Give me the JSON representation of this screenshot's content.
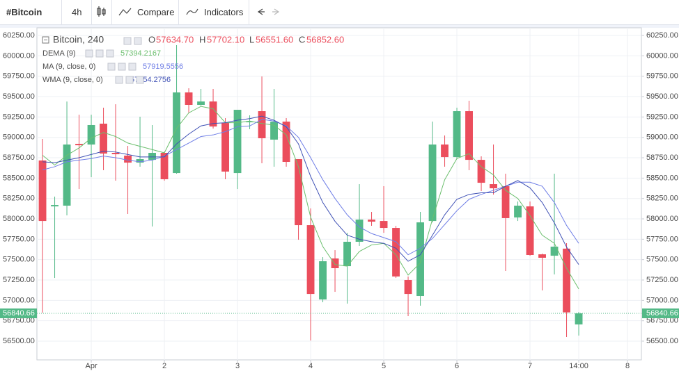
{
  "toolbar": {
    "symbol": "#Bitcoin",
    "interval": "4h",
    "compare": "Compare",
    "indicators": "Indicators"
  },
  "chart_data": {
    "type": "candlestick",
    "title": "Bitcoin, 240",
    "ohlc_legend": {
      "labels": [
        "O",
        "H",
        "L",
        "C"
      ],
      "value_labels": [
        "57634.70",
        "57702.10",
        "56551.60",
        "56852.60"
      ]
    },
    "x": [
      0,
      1,
      2,
      3,
      4,
      5,
      6,
      7,
      8,
      9,
      10,
      11,
      12,
      13,
      14,
      15,
      16,
      17,
      18,
      19,
      20,
      21,
      22,
      23,
      24,
      25,
      26,
      27,
      28,
      29,
      30,
      31,
      32,
      33,
      34,
      35,
      36,
      37,
      38,
      39,
      40,
      41,
      42,
      43,
      44
    ],
    "open": [
      58716,
      58153,
      58162,
      58920,
      58912,
      59168,
      58810,
      58776,
      58690,
      58724,
      58810,
      58562,
      59551,
      59398,
      59440,
      59176,
      58562,
      59185,
      59321,
      58972,
      59193,
      58733,
      57923,
      57011,
      57514,
      57420,
      57719,
      57991,
      57974,
      57889,
      57250,
      57054,
      57974,
      58912,
      58758,
      59321,
      58724,
      58426,
      58401,
      58017,
      58153,
      57565,
      57548,
      57634.7,
      56705
    ],
    "high": [
      58980,
      58273,
      59440,
      59278,
      59278,
      59364,
      59406,
      58895,
      59253,
      59151,
      58827,
      60131,
      59602,
      59594,
      59594,
      59236,
      59338,
      59270,
      59747,
      59594,
      59236,
      58733,
      58128,
      57531,
      57616,
      57829,
      58426,
      58085,
      58401,
      57915,
      57293,
      58085,
      59193,
      59023,
      59364,
      59449,
      58767,
      58912,
      58554,
      58213,
      58213,
      57574,
      58554,
      57702.1,
      56858
    ],
    "low": [
      56849,
      57275,
      58043,
      58366,
      58511,
      58597,
      58469,
      58060,
      58640,
      57906,
      58469,
      58554,
      59304,
      59389,
      59108,
      58486,
      58366,
      59100,
      58682,
      58640,
      58640,
      57744,
      56508,
      56977,
      57105,
      56960,
      57668,
      57915,
      57829,
      57275,
      56807,
      56935,
      57957,
      58640,
      58741,
      58597,
      58341,
      58298,
      57361,
      57974,
      57548,
      57122,
      57318,
      56551.6,
      56568
    ],
    "close": [
      57974,
      58170,
      58912,
      58903,
      59151,
      58801,
      58793,
      58690,
      58733,
      58810,
      58486,
      59551,
      59398,
      59440,
      59133,
      58580,
      59338,
      59193,
      58989,
      59193,
      58699,
      57923,
      57079,
      57480,
      57395,
      57719,
      57991,
      57966,
      57889,
      57293,
      57079,
      57957,
      58912,
      58758,
      59321,
      58724,
      58443,
      58375,
      58009,
      58162,
      57557,
      57523,
      57659,
      56852.6,
      56840.66
    ],
    "up_color": "#53b987",
    "down_color": "#eb4d5c",
    "indicators": [
      {
        "name": "DEMA (9)",
        "color": "#6cbf6e",
        "values": [
          58780,
          58660,
          58780,
          58870,
          58990,
          59060,
          59010,
          58930,
          58890,
          58850,
          58810,
          59110,
          59300,
          59380,
          59350,
          59180,
          59180,
          59200,
          59170,
          59150,
          59030,
          58640,
          58020,
          57660,
          57440,
          57420,
          57600,
          57680,
          57700,
          57560,
          57310,
          57460,
          58000,
          58480,
          58740,
          58800,
          58640,
          58540,
          58350,
          58250,
          58040,
          57800,
          57700,
          57394.2167,
          57140
        ]
      },
      {
        "name": "MA (9, close, 0)",
        "color": "#6f7ee6",
        "values": [
          58600,
          58640,
          58700,
          58720,
          58740,
          58770,
          58750,
          58720,
          58700,
          58720,
          58770,
          58850,
          58930,
          59010,
          59030,
          59070,
          59130,
          59140,
          59220,
          59200,
          59140,
          59000,
          58750,
          58480,
          58250,
          58050,
          57900,
          57820,
          57770,
          57720,
          57560,
          57640,
          57760,
          57930,
          58100,
          58240,
          58300,
          58350,
          58400,
          58450,
          58450,
          58400,
          58200,
          57919.5556,
          57700
        ]
      },
      {
        "name": "WMA (9, close, 0)",
        "color": "#3f51b5",
        "values": [
          58700,
          58690,
          58720,
          58750,
          58790,
          58830,
          58820,
          58790,
          58760,
          58760,
          58760,
          58920,
          59040,
          59140,
          59170,
          59180,
          59210,
          59230,
          59260,
          59210,
          59130,
          58920,
          58520,
          58200,
          57970,
          57800,
          57750,
          57720,
          57700,
          57640,
          57480,
          57560,
          57800,
          58050,
          58240,
          58300,
          58320,
          58320,
          58400,
          58470,
          58380,
          58200,
          57950,
          57654.2756,
          57440
        ]
      }
    ],
    "last_price": 56840.66,
    "xlim": [
      -0.46,
      49.14
    ],
    "ylim": [
      56270,
      60344
    ],
    "xticks": [
      {
        "value": 4,
        "label": "Apr"
      },
      {
        "value": 10,
        "label": "2"
      },
      {
        "value": 16,
        "label": "3"
      },
      {
        "value": 22,
        "label": "4"
      },
      {
        "value": 28,
        "label": "5"
      },
      {
        "value": 34,
        "label": "6"
      },
      {
        "value": 40,
        "label": "7"
      },
      {
        "value": 44,
        "label": "14:00"
      },
      {
        "value": 48,
        "label": "8"
      }
    ],
    "yticks": [
      {
        "value": 60250,
        "label": "60250.00"
      },
      {
        "value": 60000,
        "label": "60000.00"
      },
      {
        "value": 59750,
        "label": "59750.00"
      },
      {
        "value": 59500,
        "label": "59500.00"
      },
      {
        "value": 59250,
        "label": "59250.00"
      },
      {
        "value": 59000,
        "label": "59000.00"
      },
      {
        "value": 58750,
        "label": "58750.00"
      },
      {
        "value": 58500,
        "label": "58500.00"
      },
      {
        "value": 58250,
        "label": "58250.00"
      },
      {
        "value": 58000,
        "label": "58000.00"
      },
      {
        "value": 57750,
        "label": "57750.00"
      },
      {
        "value": 57500,
        "label": "57500.00"
      },
      {
        "value": 57250,
        "label": "57250.00"
      },
      {
        "value": 57000,
        "label": "57000.00"
      },
      {
        "value": 56750,
        "label": "56750.00"
      },
      {
        "value": 56500,
        "label": "56500.00"
      }
    ],
    "grid": true
  }
}
